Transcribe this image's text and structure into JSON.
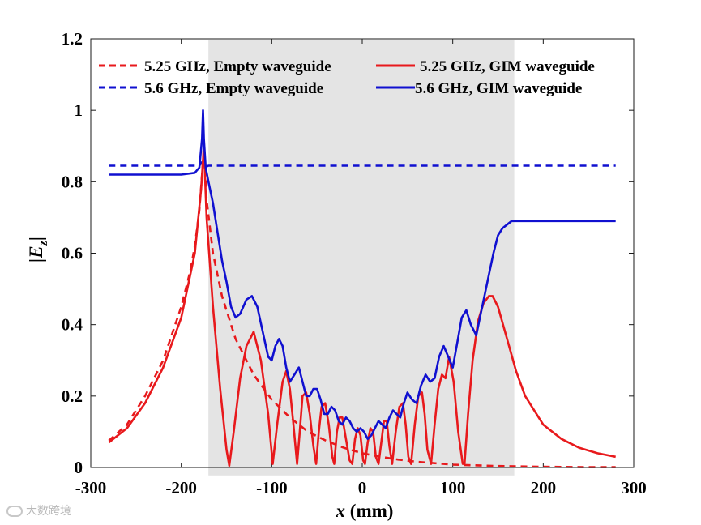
{
  "chart_data": {
    "type": "line",
    "xlabel": "x (mm)",
    "xlabel_var": "x",
    "xlabel_unit": " (mm)",
    "ylabel_base": "|E",
    "ylabel_sub": "z",
    "ylabel_end": "|",
    "xlim": [
      -300,
      300
    ],
    "ylim": [
      0,
      1.2
    ],
    "xticks": [
      -300,
      -200,
      -100,
      0,
      100,
      200,
      300
    ],
    "yticks": [
      0,
      0.2,
      0.4,
      0.6,
      0.8,
      1,
      1.2
    ],
    "xtick_labels": [
      "-300",
      "-200",
      "-100",
      "0",
      "100",
      "200",
      "300"
    ],
    "ytick_labels": [
      "0",
      "0.2",
      "0.4",
      "0.6",
      "0.8",
      "1",
      "1.2"
    ],
    "shaded_region": {
      "x_start": -170,
      "x_end": 168,
      "color": "#e4e4e4"
    },
    "series": [
      {
        "name": "5.25 GHz, Empty waveguide",
        "color": "#e8191c",
        "dash": true,
        "x": [
          -280,
          -260,
          -240,
          -220,
          -200,
          -190,
          -185,
          -180,
          -177,
          -175,
          -172,
          -165,
          -155,
          -140,
          -120,
          -100,
          -80,
          -60,
          -40,
          -20,
          0,
          20,
          40,
          60,
          80,
          100,
          150,
          200,
          250,
          280
        ],
        "y": [
          0.075,
          0.12,
          0.2,
          0.3,
          0.45,
          0.55,
          0.62,
          0.72,
          0.82,
          0.9,
          0.75,
          0.6,
          0.48,
          0.36,
          0.26,
          0.19,
          0.14,
          0.1,
          0.075,
          0.055,
          0.04,
          0.03,
          0.022,
          0.016,
          0.012,
          0.008,
          0.004,
          0.002,
          0.001,
          0.001
        ]
      },
      {
        "name": "5.6 GHz, Empty waveguide",
        "color": "#1010d0",
        "dash": true,
        "x": [
          -280,
          -180,
          -177,
          -174,
          -170,
          280
        ],
        "y": [
          0.845,
          0.845,
          0.855,
          0.84,
          0.845,
          0.845
        ]
      },
      {
        "name": "5.25 GHz, GIM waveguide",
        "color": "#e8191c",
        "dash": false,
        "x": [
          -280,
          -260,
          -240,
          -220,
          -200,
          -185,
          -178,
          -175,
          -172,
          -165,
          -157,
          -150,
          -147,
          -142,
          -135,
          -128,
          -120,
          -112,
          -104,
          -99,
          -94,
          -88,
          -84,
          -80,
          -76,
          -72,
          -69,
          -66,
          -62,
          -58,
          -54,
          -51,
          -48,
          -45,
          -41,
          -37,
          -33,
          -31,
          -28,
          -25,
          -22,
          -18,
          -14,
          -11,
          -8,
          -5,
          -2,
          1,
          3,
          6,
          9,
          12,
          15,
          18,
          21,
          24,
          27,
          30,
          33,
          37,
          41,
          45,
          48,
          51,
          54,
          58,
          62,
          66,
          69,
          72,
          76,
          80,
          84,
          88,
          92,
          96,
          101,
          106,
          111,
          113,
          117,
          122,
          128,
          134,
          140,
          144,
          150,
          160,
          170,
          180,
          200,
          220,
          240,
          260,
          280
        ],
        "y": [
          0.07,
          0.11,
          0.18,
          0.28,
          0.42,
          0.6,
          0.78,
          0.9,
          0.7,
          0.45,
          0.22,
          0.05,
          0.005,
          0.1,
          0.25,
          0.34,
          0.38,
          0.3,
          0.15,
          0.01,
          0.12,
          0.24,
          0.27,
          0.22,
          0.12,
          0.01,
          0.1,
          0.2,
          0.21,
          0.15,
          0.06,
          0.01,
          0.1,
          0.17,
          0.18,
          0.12,
          0.03,
          0.01,
          0.1,
          0.14,
          0.14,
          0.08,
          0.02,
          0.01,
          0.08,
          0.11,
          0.09,
          0.02,
          0.01,
          0.07,
          0.11,
          0.1,
          0.03,
          0.01,
          0.07,
          0.13,
          0.13,
          0.06,
          0.01,
          0.1,
          0.17,
          0.18,
          0.12,
          0.03,
          0.01,
          0.12,
          0.2,
          0.21,
          0.15,
          0.05,
          0.01,
          0.12,
          0.22,
          0.26,
          0.25,
          0.31,
          0.24,
          0.1,
          0.01,
          0.01,
          0.15,
          0.3,
          0.41,
          0.46,
          0.48,
          0.48,
          0.45,
          0.36,
          0.27,
          0.2,
          0.12,
          0.08,
          0.055,
          0.04,
          0.03
        ]
      },
      {
        "name": "5.6 GHz, GIM waveguide",
        "color": "#1010d0",
        "dash": false,
        "x": [
          -280,
          -240,
          -200,
          -185,
          -180,
          -177,
          -176,
          -175,
          -173,
          -170,
          -165,
          -160,
          -155,
          -150,
          -145,
          -140,
          -135,
          -128,
          -122,
          -116,
          -110,
          -104,
          -100,
          -96,
          -92,
          -88,
          -84,
          -80,
          -75,
          -70,
          -66,
          -62,
          -58,
          -54,
          -50,
          -46,
          -42,
          -38,
          -34,
          -30,
          -26,
          -22,
          -18,
          -14,
          -10,
          -6,
          -2,
          2,
          6,
          10,
          14,
          18,
          22,
          26,
          30,
          34,
          38,
          42,
          46,
          50,
          55,
          60,
          65,
          70,
          75,
          80,
          85,
          90,
          95,
          100,
          105,
          110,
          115,
          120,
          126,
          130,
          135,
          140,
          145,
          150,
          155,
          160,
          165,
          170,
          180,
          200,
          240,
          280
        ],
        "y": [
          0.82,
          0.82,
          0.82,
          0.825,
          0.84,
          0.92,
          1.0,
          0.92,
          0.84,
          0.8,
          0.74,
          0.66,
          0.58,
          0.52,
          0.45,
          0.42,
          0.43,
          0.47,
          0.48,
          0.45,
          0.38,
          0.31,
          0.3,
          0.34,
          0.36,
          0.34,
          0.28,
          0.24,
          0.26,
          0.28,
          0.24,
          0.2,
          0.2,
          0.22,
          0.22,
          0.19,
          0.15,
          0.15,
          0.17,
          0.16,
          0.13,
          0.12,
          0.14,
          0.13,
          0.11,
          0.1,
          0.11,
          0.1,
          0.08,
          0.09,
          0.11,
          0.13,
          0.12,
          0.11,
          0.14,
          0.16,
          0.15,
          0.14,
          0.18,
          0.21,
          0.19,
          0.18,
          0.23,
          0.26,
          0.24,
          0.25,
          0.31,
          0.34,
          0.31,
          0.28,
          0.35,
          0.42,
          0.44,
          0.4,
          0.37,
          0.42,
          0.48,
          0.54,
          0.6,
          0.65,
          0.67,
          0.68,
          0.69,
          0.69,
          0.69,
          0.69,
          0.69,
          0.69
        ]
      }
    ]
  },
  "legend": {
    "item1": "5.25 GHz, Empty waveguide",
    "item2": "5.25 GHz, GIM waveguide",
    "item3": "5.6 GHz, Empty waveguide",
    "item4": "5.6 GHz, GIM waveguide"
  },
  "watermark": {
    "text": "大数跨境"
  }
}
